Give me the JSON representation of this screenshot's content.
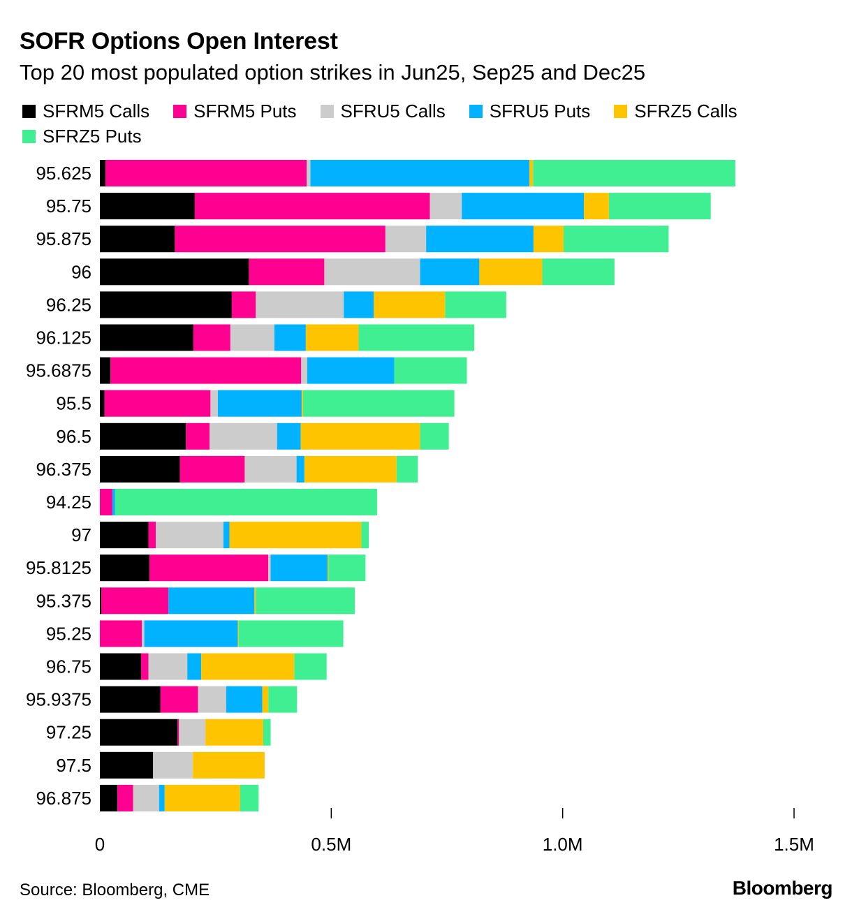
{
  "chart_data": {
    "type": "bar",
    "orientation": "horizontal",
    "stacked": true,
    "title": "SOFR Options Open Interest",
    "subtitle": "Top 20 most populated option strikes in Jun25, Sep25 and Dec25",
    "xlabel": "",
    "ylabel": "",
    "xlim": [
      0,
      1500000
    ],
    "xticks": [
      {
        "value": 0,
        "label": "0"
      },
      {
        "value": 500000,
        "label": "0.5M"
      },
      {
        "value": 1000000,
        "label": "1.0M"
      },
      {
        "value": 1500000,
        "label": "1.5M"
      }
    ],
    "legend_position": "top-left",
    "categories": [
      "95.625",
      "95.75",
      "95.875",
      "96",
      "96.25",
      "96.125",
      "95.6875",
      "95.5",
      "96.5",
      "96.375",
      "94.25",
      "97",
      "95.8125",
      "95.375",
      "95.25",
      "96.75",
      "95.9375",
      "97.25",
      "97.5",
      "96.875"
    ],
    "series": [
      {
        "name": "SFRM5 Calls",
        "color": "#000000",
        "values": [
          12000,
          205000,
          162000,
          322000,
          285000,
          202000,
          23000,
          10000,
          186000,
          173000,
          0,
          105000,
          107000,
          3000,
          0,
          89000,
          131000,
          168000,
          115000,
          38000
        ]
      },
      {
        "name": "SFRM5 Puts",
        "color": "#ff0090",
        "values": [
          435000,
          508000,
          455000,
          163000,
          52000,
          80000,
          412000,
          229000,
          51000,
          140000,
          27000,
          16000,
          257000,
          145000,
          91000,
          16000,
          81000,
          3000,
          0,
          34000
        ]
      },
      {
        "name": "SFRU5 Calls",
        "color": "#cccccc",
        "values": [
          8000,
          69000,
          88000,
          207000,
          190000,
          95000,
          13000,
          16000,
          146000,
          112000,
          0,
          146000,
          5000,
          0,
          5000,
          84000,
          61000,
          57000,
          86000,
          56000
        ]
      },
      {
        "name": "SFRU5 Puts",
        "color": "#00b2ff",
        "values": [
          473000,
          264000,
          232000,
          128000,
          65000,
          68000,
          188000,
          181000,
          51000,
          17000,
          6000,
          13000,
          123000,
          186000,
          202000,
          30000,
          78000,
          0,
          0,
          12000
        ]
      },
      {
        "name": "SFRZ5 Calls",
        "color": "#ffc400",
        "values": [
          8000,
          54000,
          65000,
          136000,
          154000,
          114000,
          0,
          3000,
          258000,
          199000,
          0,
          285000,
          2000,
          3000,
          2000,
          201000,
          13000,
          125000,
          155000,
          163000
        ]
      },
      {
        "name": "SFRZ5 Puts",
        "color": "#3fef91",
        "values": [
          437000,
          220000,
          227000,
          156000,
          132000,
          250000,
          157000,
          327000,
          62000,
          46000,
          566000,
          16000,
          80000,
          214000,
          226000,
          70000,
          62000,
          16000,
          0,
          40000
        ]
      }
    ]
  },
  "footer": {
    "source": "Source: Bloomberg, CME",
    "brand": "Bloomberg"
  }
}
